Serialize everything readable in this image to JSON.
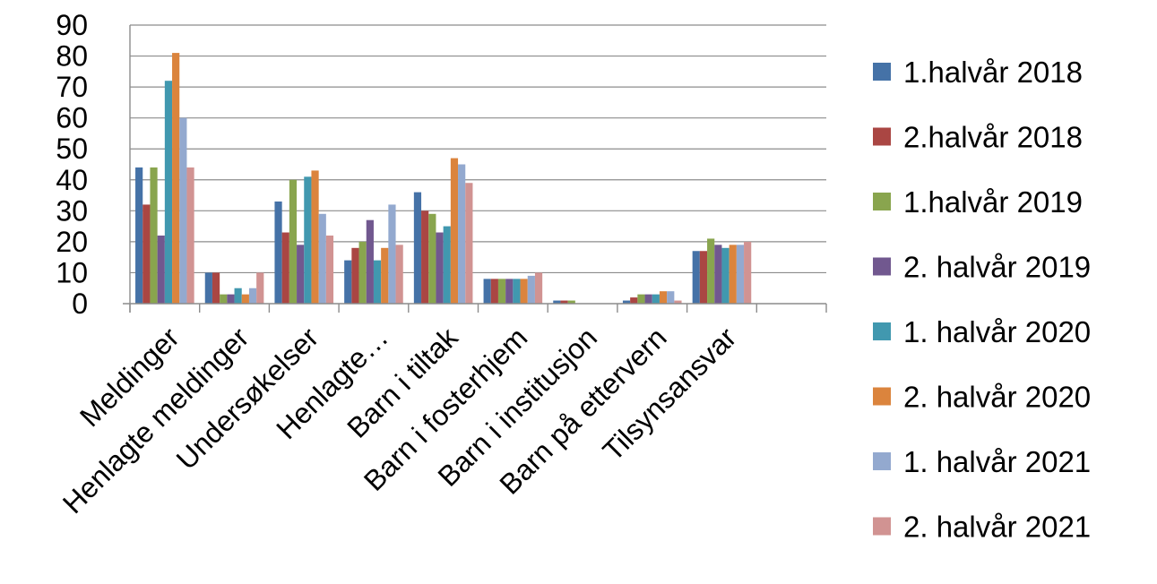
{
  "chart_data": {
    "type": "bar",
    "title": "",
    "xlabel": "",
    "ylabel": "",
    "ylim": [
      0,
      90
    ],
    "yticks": [
      0,
      10,
      20,
      30,
      40,
      50,
      60,
      70,
      80,
      90
    ],
    "grid": true,
    "legend_position": "right",
    "categories": [
      "Meldinger",
      "Henlagte meldinger",
      "Undersøkelser",
      "Henlagte…",
      "Barn i tiltak",
      "Barn i fosterhjem",
      "Barn i institusjon",
      "Barn på ettervern",
      "Tilsynsansvar",
      ""
    ],
    "series": [
      {
        "name": "1.halvår 2018",
        "color": "#4572A7",
        "values": [
          44,
          10,
          33,
          14,
          36,
          8,
          1,
          1,
          17,
          0
        ]
      },
      {
        "name": "2.halvår 2018",
        "color": "#AA4643",
        "values": [
          32,
          10,
          23,
          18,
          30,
          8,
          1,
          2,
          17,
          0
        ]
      },
      {
        "name": "1.halvår 2019",
        "color": "#89A54E",
        "values": [
          44,
          3,
          40,
          20,
          29,
          8,
          1,
          3,
          21,
          0
        ]
      },
      {
        "name": "2. halvår 2019",
        "color": "#71588F",
        "values": [
          22,
          3,
          19,
          27,
          23,
          8,
          0,
          3,
          19,
          0
        ]
      },
      {
        "name": "1. halvår 2020",
        "color": "#4198AF",
        "values": [
          72,
          5,
          41,
          14,
          25,
          8,
          0,
          3,
          18,
          0
        ]
      },
      {
        "name": "2. halvår 2020",
        "color": "#DB843D",
        "values": [
          81,
          3,
          43,
          18,
          47,
          8,
          0,
          4,
          19,
          0
        ]
      },
      {
        "name": "1. halvår 2021",
        "color": "#93A9CF",
        "values": [
          60,
          5,
          29,
          32,
          45,
          9,
          0,
          4,
          19,
          0
        ]
      },
      {
        "name": "2. halvår 2021",
        "color": "#D19392",
        "values": [
          44,
          10,
          22,
          19,
          39,
          10,
          0,
          1,
          20,
          0
        ]
      }
    ]
  }
}
